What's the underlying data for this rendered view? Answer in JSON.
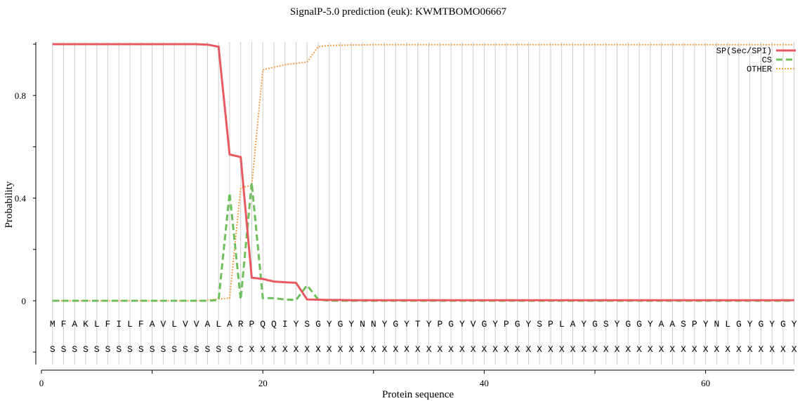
{
  "chart_data": {
    "type": "line",
    "title": "SignalP-5.0 prediction (euk):  KWMTBOMO06667",
    "xlabel": "Protein sequence",
    "ylabel": "Probability",
    "xlim": [
      0,
      68
    ],
    "ylim": [
      -0.25,
      1.0
    ],
    "x_ticks": [
      0,
      20,
      40,
      60
    ],
    "y_ticks": [
      0,
      0.4,
      0.8
    ],
    "y_tick_labels": [
      "0",
      "0.4",
      "0.8"
    ],
    "grid": "vertical lines at each residue position",
    "legend_position": "top-right",
    "sequence": [
      "M",
      "F",
      "A",
      "K",
      "L",
      "F",
      "I",
      "L",
      "F",
      "A",
      "V",
      "L",
      "V",
      "V",
      "A",
      "L",
      "A",
      "R",
      "P",
      "Q",
      "Q",
      "I",
      "Y",
      "S",
      "G",
      "Y",
      "G",
      "Y",
      "N",
      "N",
      "Y",
      "G",
      "Y",
      "T",
      "Y",
      "P",
      "G",
      "Y",
      "V",
      "G",
      "Y",
      "P",
      "G",
      "Y",
      "S",
      "P",
      "L",
      "A",
      "Y",
      "G",
      "S",
      "Y",
      "G",
      "G",
      "Y",
      "A",
      "A",
      "S",
      "P",
      "Y",
      "N",
      "L",
      "G",
      "Y",
      "G",
      "Y",
      "G",
      "Y"
    ],
    "labels": [
      "S",
      "S",
      "S",
      "S",
      "S",
      "S",
      "S",
      "S",
      "S",
      "S",
      "S",
      "S",
      "S",
      "S",
      "S",
      "S",
      "S",
      "C",
      "X",
      "X",
      "X",
      "X",
      "X",
      "X",
      "X",
      "X",
      "X",
      "X",
      "X",
      "X",
      "X",
      "X",
      "X",
      "X",
      "X",
      "X",
      "X",
      "X",
      "X",
      "X",
      "X",
      "X",
      "X",
      "X",
      "X",
      "X",
      "X",
      "X",
      "X",
      "X",
      "X",
      "X",
      "X",
      "X",
      "X",
      "X",
      "X",
      "X",
      "X",
      "X",
      "X",
      "X",
      "X",
      "X",
      "X",
      "X",
      "X",
      "X"
    ],
    "series": [
      {
        "name": "SP(Sec/SPI)",
        "color": "#e8595f",
        "style": "solid",
        "values": [
          1,
          1,
          1,
          1,
          1,
          1,
          1,
          1,
          1,
          1,
          1,
          1,
          1,
          1,
          0.998,
          0.99,
          0.57,
          0.56,
          0.09,
          0.085,
          0.075,
          0.072,
          0.07,
          0.005,
          0.004,
          0.003,
          0.003,
          0.002,
          0.002,
          0.002,
          0.002,
          0.002,
          0.002,
          0.002,
          0.002,
          0.002,
          0.002,
          0.002,
          0.002,
          0.002,
          0.002,
          0.002,
          0.002,
          0.002,
          0.002,
          0.002,
          0.002,
          0.002,
          0.002,
          0.002,
          0.002,
          0.002,
          0.002,
          0.002,
          0.002,
          0.002,
          0.002,
          0.002,
          0.002,
          0.002,
          0.002,
          0.002,
          0.002,
          0.002,
          0.002,
          0.002,
          0.002,
          0.002
        ]
      },
      {
        "name": "CS",
        "color": "#6cbf5b",
        "style": "dashed",
        "values": [
          0,
          0,
          0,
          0,
          0,
          0,
          0,
          0,
          0,
          0,
          0,
          0,
          0,
          0,
          0,
          0.003,
          0.42,
          0.005,
          0.46,
          0.01,
          0.01,
          0.005,
          0.003,
          0.06,
          0.005,
          0,
          0,
          0,
          0,
          0,
          0,
          0,
          0,
          0,
          0,
          0,
          0,
          0,
          0,
          0,
          0,
          0,
          0,
          0,
          0,
          0,
          0,
          0,
          0,
          0,
          0,
          0,
          0,
          0,
          0,
          0,
          0,
          0,
          0,
          0,
          0,
          0,
          0,
          0,
          0,
          0,
          0,
          0
        ]
      },
      {
        "name": "OTHER",
        "color": "#f5a04a",
        "style": "dotted",
        "values": [
          0,
          0,
          0,
          0,
          0,
          0,
          0,
          0,
          0,
          0,
          0,
          0,
          0,
          0,
          0.002,
          0.007,
          0.01,
          0.44,
          0.45,
          0.9,
          0.91,
          0.92,
          0.925,
          0.93,
          0.99,
          0.995,
          0.996,
          0.997,
          0.997,
          0.998,
          0.998,
          0.998,
          0.998,
          0.998,
          0.998,
          0.998,
          0.998,
          0.998,
          0.998,
          0.998,
          0.998,
          0.998,
          0.998,
          0.998,
          0.998,
          0.998,
          0.998,
          0.998,
          0.998,
          0.998,
          0.998,
          0.998,
          0.998,
          0.998,
          0.998,
          0.998,
          0.998,
          0.998,
          0.998,
          0.998,
          0.998,
          0.998,
          0.998,
          0.998,
          0.998,
          0.998,
          0.998,
          0.998
        ]
      }
    ]
  }
}
